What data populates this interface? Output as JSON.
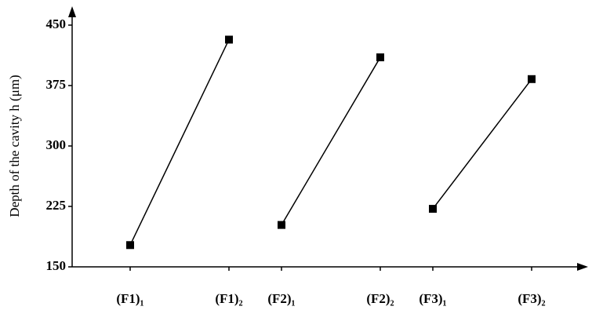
{
  "chart_data": {
    "type": "line",
    "y_label": "Depth of the cavity h (μm)",
    "categories": [
      "(F1)₁",
      "(F1)₂",
      "(F2)₁",
      "(F2)₂",
      "(F3)₁",
      "(F3)₂"
    ],
    "series": [
      {
        "color": "#000000",
        "values": [
          177,
          432,
          null,
          null,
          null,
          null
        ]
      },
      {
        "color": "#000000",
        "values": [
          null,
          null,
          202,
          410,
          null,
          null
        ]
      },
      {
        "color": "#000000",
        "values": [
          null,
          null,
          null,
          null,
          222,
          383
        ]
      }
    ],
    "ylim": [
      150,
      450
    ],
    "yticks": [
      150,
      225,
      300,
      375,
      450
    ],
    "grid": false
  }
}
